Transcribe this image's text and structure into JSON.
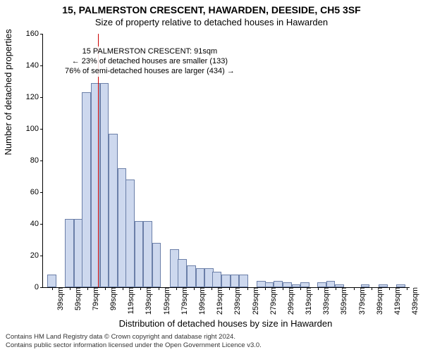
{
  "title": "15, PALMERSTON CRESCENT, HAWARDEN, DEESIDE, CH5 3SF",
  "subtitle": "Size of property relative to detached houses in Hawarden",
  "ylabel": "Number of detached properties",
  "xlabel": "Distribution of detached houses by size in Hawarden",
  "footer_line1": "Contains HM Land Registry data © Crown copyright and database right 2024.",
  "footer_line2": "Contains public sector information licensed under the Open Government Licence v3.0.",
  "chart": {
    "type": "histogram",
    "background_color": "#ffffff",
    "bar_fill": "#cdd8ee",
    "bar_stroke": "#6b7fa8",
    "axis_color": "#000000",
    "refline_color": "#cc0000",
    "ylim": [
      0,
      160
    ],
    "ytick_step": 20,
    "xtick_start": 39,
    "xtick_step": 20,
    "xlim": [
      29,
      442
    ],
    "bar_bin_width": 10,
    "refline_x": 91,
    "label_fontsize": 13,
    "tick_fontsize": 11,
    "bars": [
      {
        "x": 39,
        "v": 8
      },
      {
        "x": 49,
        "v": 0
      },
      {
        "x": 59,
        "v": 43
      },
      {
        "x": 69,
        "v": 43
      },
      {
        "x": 78,
        "v": 123
      },
      {
        "x": 88,
        "v": 129
      },
      {
        "x": 98,
        "v": 129
      },
      {
        "x": 108,
        "v": 97
      },
      {
        "x": 118,
        "v": 75
      },
      {
        "x": 127,
        "v": 68
      },
      {
        "x": 137,
        "v": 42
      },
      {
        "x": 147,
        "v": 42
      },
      {
        "x": 157,
        "v": 28
      },
      {
        "x": 167,
        "v": 0
      },
      {
        "x": 177,
        "v": 24
      },
      {
        "x": 186,
        "v": 18
      },
      {
        "x": 196,
        "v": 14
      },
      {
        "x": 206,
        "v": 12
      },
      {
        "x": 216,
        "v": 12
      },
      {
        "x": 225,
        "v": 10
      },
      {
        "x": 235,
        "v": 8
      },
      {
        "x": 245,
        "v": 8
      },
      {
        "x": 255,
        "v": 8
      },
      {
        "x": 265,
        "v": 0
      },
      {
        "x": 275,
        "v": 4
      },
      {
        "x": 284,
        "v": 3
      },
      {
        "x": 294,
        "v": 4
      },
      {
        "x": 304,
        "v": 3
      },
      {
        "x": 314,
        "v": 2
      },
      {
        "x": 324,
        "v": 3
      },
      {
        "x": 333,
        "v": 0
      },
      {
        "x": 343,
        "v": 3
      },
      {
        "x": 353,
        "v": 4
      },
      {
        "x": 363,
        "v": 2
      },
      {
        "x": 373,
        "v": 0
      },
      {
        "x": 382,
        "v": 0
      },
      {
        "x": 392,
        "v": 2
      },
      {
        "x": 402,
        "v": 0
      },
      {
        "x": 412,
        "v": 2
      },
      {
        "x": 422,
        "v": 0
      },
      {
        "x": 432,
        "v": 2
      }
    ],
    "annotation": {
      "line1": "15 PALMERSTON CRESCENT: 91sqm",
      "line2": "← 23% of detached houses are smaller (133)",
      "line3": "76% of semi-detached houses are larger (434) →",
      "box_left_x_data": 52,
      "box_top_y_data": 152
    }
  }
}
